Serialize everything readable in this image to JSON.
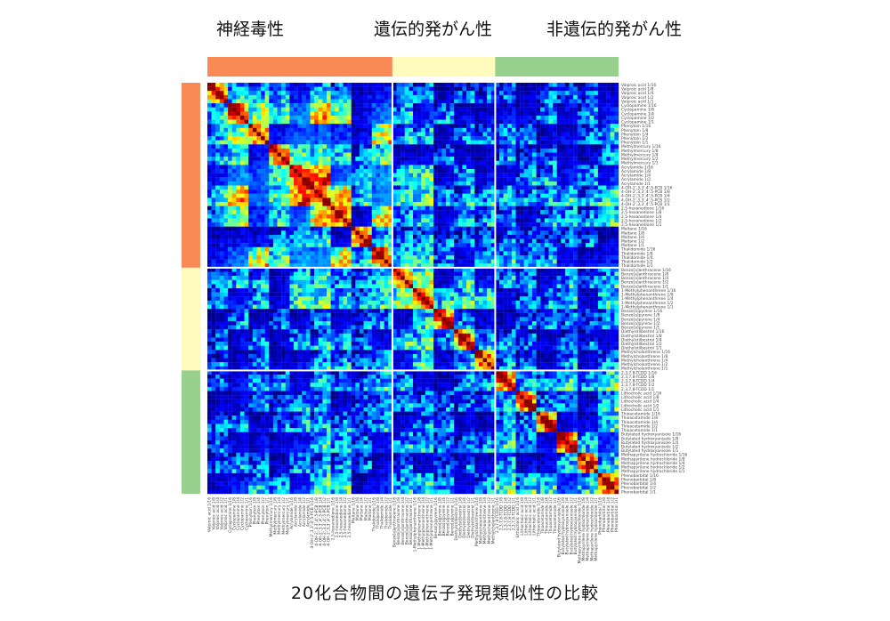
{
  "header": {
    "group_titles": [
      "神経毒性",
      "遺伝的発がん性",
      "非遺伝的発がん性"
    ]
  },
  "caption": "20化合物間の遺伝子発現類似性の比較",
  "colors": {
    "neurotoxic": "#f98a55",
    "genotoxic": "#fefbbd",
    "nongenotoxic": "#97d18d",
    "separator": "#ffffff"
  },
  "chart_data": {
    "type": "heatmap",
    "title": "",
    "colormap": "jet",
    "groups": [
      {
        "name": "神経毒性",
        "compounds": [
          "Valproic acid",
          "Cyclopamine",
          "Phenytoin",
          "Methylmercury",
          "Acrylamide",
          "4-OH-2',3,3',4',5-PCB",
          "2,5-hexanedione",
          "Maltane",
          "Thalidomide"
        ]
      },
      {
        "name": "遺伝的発がん性",
        "compounds": [
          "Benzo[a]anthracene",
          "1-Methylphenanthrene",
          "Benzo[a]pyrene",
          "Diethylstilbestrol",
          "Methylcholanthrene"
        ]
      },
      {
        "name": "非遺伝的発がん性",
        "compounds": [
          "2,3,7,8-TCDD",
          "Lithocholic acid",
          "Thioacetamide",
          "Butylated hydroxyanisole",
          "Methapyrilene hydrochloride",
          "Phenobarbital"
        ]
      }
    ],
    "doses": [
      "1/16",
      "1/8",
      "1/4",
      "1/2",
      "1/1"
    ],
    "row_labels": [
      "Valproic acid 1/16",
      "Valproic acid 1/8",
      "Valproic acid 1/4",
      "Valproic acid 1/2",
      "Valproic acid 1/1",
      "Cyclopamine 1/16",
      "Cyclopamine 1/8",
      "Cyclopamine 1/4",
      "Cyclopamine 1/2",
      "Cyclopamine 1/1",
      "Phenytoin 1/16",
      "Phenytoin 1/8",
      "Phenytoin 1/4",
      "Phenytoin 1/2",
      "Phenytoin 1/1",
      "Methylmercury 1/16",
      "Methylmercury 1/8",
      "Methylmercury 1/4",
      "Methylmercury 1/2",
      "Methylmercury 1/1",
      "Acrylamide 1/16",
      "Acrylamide 1/8",
      "Acrylamide 1/4",
      "Acrylamide 1/2",
      "Acrylamide 1/1",
      "4-OH-2',3,3',4',5-PCB 1/16",
      "4-OH-2',3,3',4',5-PCB 1/8",
      "4-OH-2',3,3',4',5-PCB 1/4",
      "4-OH-2',3,3',4',5-PCB 1/2",
      "4-OH-2',3,3',4',5-PCB 1/1",
      "2,5-hexanedione 1/16",
      "2,5-hexanedione 1/8",
      "2,5-hexanedione 1/4",
      "2,5-hexanedione 1/2",
      "2,5-hexanedione 1/1",
      "Maltane 1/16",
      "Maltane 1/8",
      "Maltane 1/4",
      "Maltane 1/2",
      "Maltane 1/1",
      "Thalidomide 1/16",
      "Thalidomide 1/8",
      "Thalidomide 1/4",
      "Thalidomide 1/2",
      "Thalidomide 1/1",
      "Benzo[a]anthracene 1/16",
      "Benzo[a]anthracene 1/8",
      "Benzo[a]anthracene 1/4",
      "Benzo[a]anthracene 1/2",
      "Benzo[a]anthracene 1/1",
      "1-Methylphenanthrene 1/16",
      "1-Methylphenanthrene 1/8",
      "1-Methylphenanthrene 1/4",
      "1-Methylphenanthrene 1/2",
      "1-Methylphenanthrene 1/1",
      "Benzo[a]pyrene 1/16",
      "Benzo[a]pyrene 1/8",
      "Benzo[a]pyrene 1/4",
      "Benzo[a]pyrene 1/2",
      "Benzo[a]pyrene 1/1",
      "Diethylstilbestrol 1/16",
      "Diethylstilbestrol 1/8",
      "Diethylstilbestrol 1/4",
      "Diethylstilbestrol 1/2",
      "Diethylstilbestrol 1/1",
      "Methylcholanthrene 1/16",
      "Methylcholanthrene 1/8",
      "Methylcholanthrene 1/4",
      "Methylcholanthrene 1/2",
      "Methylcholanthrene 1/1",
      "2,3,7,8-TCDD 1/16",
      "2,3,7,8-TCDD 1/8",
      "2,3,7,8-TCDD 1/4",
      "2,3,7,8-TCDD 1/2",
      "2,3,7,8-TCDD 1/1",
      "Lithocholic acid 1/16",
      "Lithocholic acid 1/8",
      "Lithocholic acid 1/4",
      "Lithocholic acid 1/2",
      "Lithocholic acid 1/1",
      "Thioacetamide 1/16",
      "Thioacetamide 1/8",
      "Thioacetamide 1/4",
      "Thioacetamide 1/2",
      "Thioacetamide 1/1",
      "Butylated hydroxyanisole 1/16",
      "Butylated hydroxyanisole 1/8",
      "Butylated hydroxyanisole 1/4",
      "Butylated hydroxyanisole 1/2",
      "Butylated hydroxyanisole 1/1",
      "Methapyrilene hydrochloride 1/16",
      "Methapyrilene hydrochloride 1/8",
      "Methapyrilene hydrochloride 1/4",
      "Methapyrilene hydrochloride 1/2",
      "Methapyrilene hydrochloride 1/1",
      "Phenobarbital 1/16",
      "Phenobarbital 1/8",
      "Phenobarbital 1/4",
      "Phenobarbital 1/2",
      "Phenobarbital 1/1"
    ],
    "group_row_counts": [
      45,
      25,
      30
    ],
    "value_range": [
      0,
      1
    ]
  }
}
